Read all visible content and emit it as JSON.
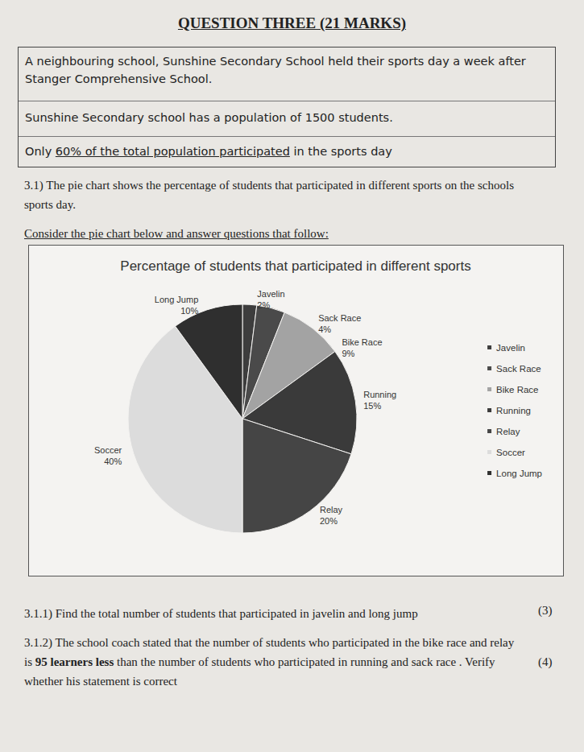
{
  "heading": "QUESTION THREE (21 MARKS)",
  "context": [
    [
      {
        "text": "A neighbouring school, Sunshine Secondary School held their sports day a week after Stanger Comprehensive School."
      }
    ],
    [
      {
        "text": "Sunshine Secondary school has a population of 1500 students."
      }
    ],
    [
      {
        "text": "Only "
      },
      {
        "text": "60% of the total population participated",
        "underline": true
      },
      {
        "text": " in the sports day"
      }
    ]
  ],
  "question_3_1": "3.1) The pie chart shows the percentage of students that participated in different sports on the schools sports day.",
  "instruction": "Consider the pie chart below and answer questions that follow:",
  "chart_data": {
    "type": "pie",
    "title": "Percentage of students that participated in different sports",
    "categories": [
      "Javelin",
      "Sack Race",
      "Bike Race",
      "Running",
      "Relay",
      "Soccer",
      "Long Jump"
    ],
    "values": [
      2,
      4,
      9,
      15,
      20,
      40,
      10
    ],
    "value_labels": [
      "2%",
      "4%",
      "9%",
      "15%",
      "20%",
      "40%",
      "10%"
    ],
    "colors": [
      "#3d3d3d",
      "#4a4a4a",
      "#a3a3a3",
      "#3a3a3a",
      "#454545",
      "#dcdcdc",
      "#2f2f2f"
    ],
    "data_labels": true,
    "legend": "right"
  },
  "questions": [
    {
      "parts": [
        {
          "text": "3.1.1) Find the total number of students that participated in javelin and long jump"
        }
      ],
      "marks": "(3)"
    },
    {
      "parts": [
        {
          "text": "3.1.2) The school coach stated that the number of students who participated in the bike race and relay is "
        },
        {
          "text": "95 learners less",
          "bold": true
        },
        {
          "text": " than the number of students who participated in running and sack race . Verify whether his statement is correct"
        }
      ],
      "marks": "(4)"
    }
  ]
}
